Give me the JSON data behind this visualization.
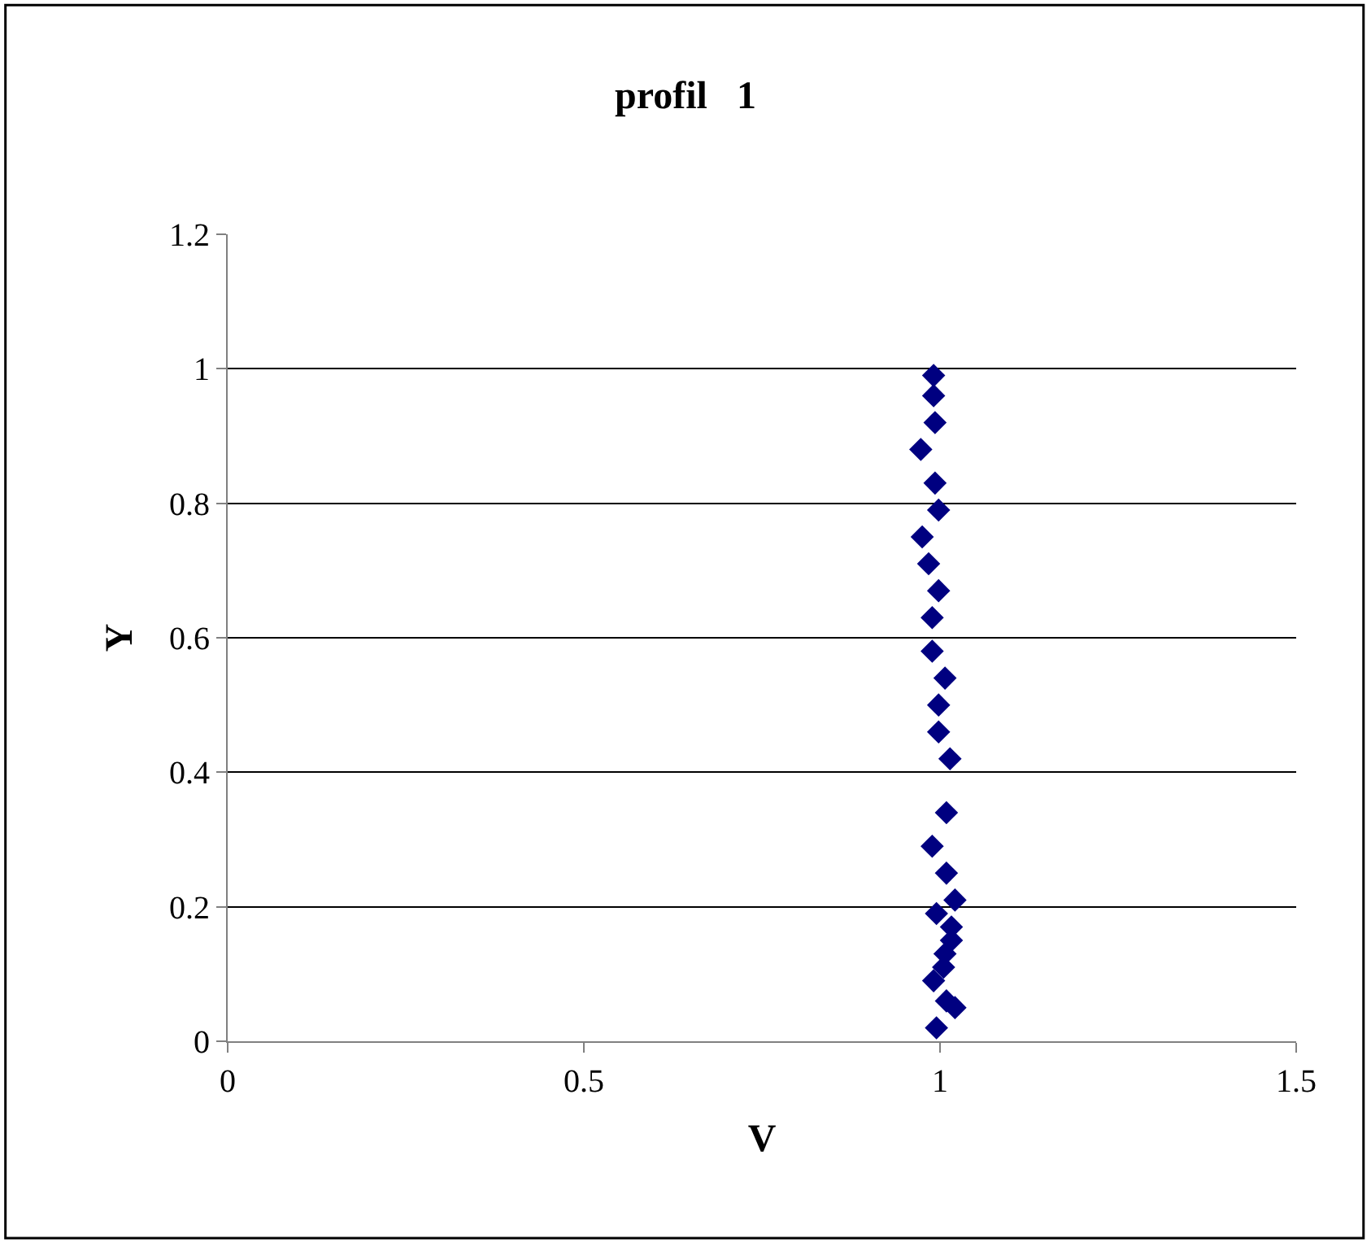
{
  "chart_data": {
    "type": "scatter",
    "title": "profil   1",
    "xlabel": "V",
    "ylabel": "Y",
    "xlim": [
      0,
      1.5
    ],
    "xticks": [
      0,
      0.5,
      1,
      1.5
    ],
    "ylim": [
      0,
      1.2
    ],
    "yticks": [
      0,
      0.2,
      0.4,
      0.6,
      0.8,
      1,
      1.2
    ],
    "grid": "y",
    "marker": "diamond",
    "series": [
      {
        "color": "#000080",
        "x": [
          0.991,
          0.991,
          0.993,
          0.973,
          0.993,
          0.998,
          0.975,
          0.984,
          0.998,
          0.989,
          0.989,
          1.007,
          0.998,
          0.998,
          1.014,
          1.009,
          0.989,
          1.009,
          1.021,
          0.995,
          1.016,
          1.016,
          1.007,
          1.005,
          0.991,
          1.009,
          1.021,
          0.995
        ],
        "values": [
          0.99,
          0.96,
          0.92,
          0.88,
          0.83,
          0.79,
          0.75,
          0.71,
          0.67,
          0.63,
          0.58,
          0.54,
          0.5,
          0.46,
          0.42,
          0.34,
          0.29,
          0.25,
          0.21,
          0.19,
          0.17,
          0.15,
          0.13,
          0.11,
          0.09,
          0.06,
          0.05,
          0.02
        ]
      }
    ]
  }
}
